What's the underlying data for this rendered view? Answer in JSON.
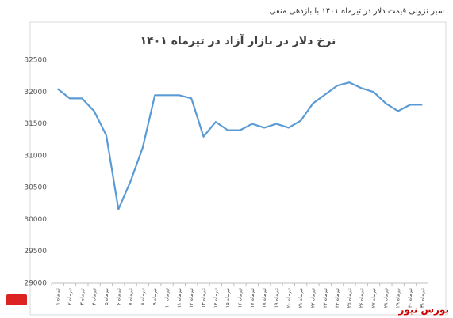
{
  "header": {
    "caption": "سیر نزولی قیمت دلار در تیرماه ۱۴۰۱ با بازدهی منفی"
  },
  "watermark": "بورس نیوز",
  "chart_data": {
    "type": "line",
    "title": "نرخ دلار در بازار آزاد در تیرماه ۱۴۰۱",
    "categories": [
      "۱ تیرماه",
      "۲ تیرماه",
      "۳ تیرماه",
      "۴ تیرماه",
      "۵ تیرماه",
      "۶ تیرماه",
      "۷ تیرماه",
      "۸ تیرماه",
      "۹ تیرماه",
      "۱۰ تیرماه",
      "۱۱ تیرماه",
      "۱۲ تیرماه",
      "۱۳ تیرماه",
      "۱۴ تیرماه",
      "۱۵ تیرماه",
      "۱۶ تیرماه",
      "۱۷ تیرماه",
      "۱۸ تیرماه",
      "۱۹ تیرماه",
      "۲۰ تیرماه",
      "۲۱ تیرماه",
      "۲۲ تیرماه",
      "۲۳ تیرماه",
      "۲۴ تیرماه",
      "۲۵ تیرماه",
      "۲۶ تیرماه",
      "۲۷ تیرماه",
      "۲۸ تیرماه",
      "۲۹ تیرماه",
      "۳۰ تیرماه",
      "۳۱ تیرماه"
    ],
    "values": [
      32050,
      31900,
      31900,
      31700,
      31320,
      30160,
      30600,
      31130,
      31950,
      31950,
      31950,
      31900,
      31300,
      31530,
      31400,
      31400,
      31500,
      31440,
      31500,
      31440,
      31550,
      31820,
      31960,
      32100,
      32150,
      32060,
      32000,
      31820,
      31700,
      31800,
      31800
    ],
    "color": "#5b9bd5",
    "ylim": [
      29000,
      32500
    ],
    "yticks": [
      29000,
      29500,
      30000,
      30500,
      31000,
      31500,
      32000,
      32500
    ],
    "grid": false
  }
}
